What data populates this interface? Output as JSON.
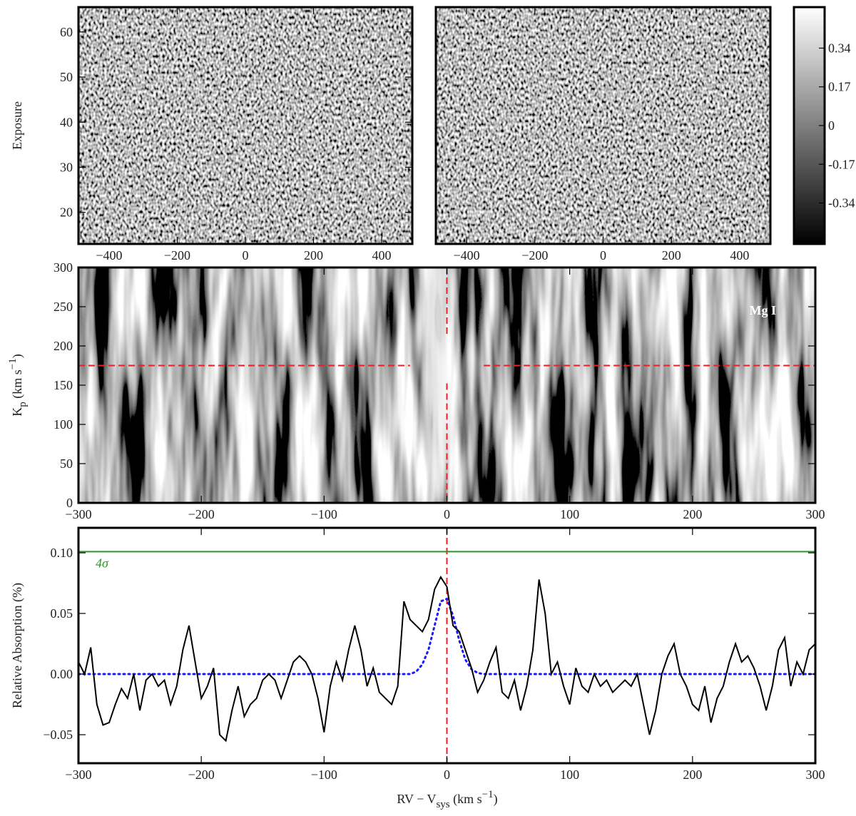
{
  "chart_data": [
    {
      "type": "heatmap",
      "texture": "noise",
      "ylabel": "Exposure",
      "xlim": [
        -490,
        490
      ],
      "xticks": [
        {
          "value": -400,
          "label": "−400"
        },
        {
          "value": -200,
          "label": "−200"
        },
        0,
        200,
        400
      ],
      "ylim": [
        13,
        65.5
      ],
      "yticks": [
        20,
        30,
        40,
        50,
        60
      ]
    },
    {
      "type": "heatmap",
      "texture": "noise",
      "xlim": [
        -490,
        490
      ],
      "xticks": [
        {
          "value": -400,
          "label": "−400"
        },
        {
          "value": -200,
          "label": "−200"
        },
        0,
        200,
        400
      ],
      "colorbar": {
        "lim": [
          -0.52,
          0.52
        ],
        "ticks": [
          0.34,
          0.17,
          0,
          -0.17,
          -0.34
        ]
      }
    },
    {
      "type": "heatmap",
      "texture": "streaks",
      "annotation": "Mg I",
      "ylabel_parts": [
        "K",
        "p",
        " (km s",
        "−1",
        ")"
      ],
      "xlim": [
        -300,
        300
      ],
      "xticks": [
        {
          "value": -300,
          "label": "−300"
        },
        {
          "value": -200,
          "label": "−200"
        },
        {
          "value": -100,
          "label": "−100"
        },
        0,
        100,
        200,
        300
      ],
      "ylim": [
        0,
        300
      ],
      "yticks": [
        0,
        50,
        100,
        150,
        200,
        250,
        300
      ],
      "reference_lines": {
        "kp": 175,
        "rv": 0,
        "color": "#e8202a"
      }
    },
    {
      "type": "line",
      "ylabel": "Relative Absorption (%)",
      "xlabel_parts": [
        "RV − V",
        "sys",
        " (km s",
        "−1",
        ")"
      ],
      "xlim": [
        -300,
        300
      ],
      "xticks": [
        {
          "value": -300,
          "label": "−300"
        },
        {
          "value": -200,
          "label": "−200"
        },
        {
          "value": -100,
          "label": "−100"
        },
        0,
        100,
        200,
        300
      ],
      "ylim": [
        -0.0735,
        0.1206
      ],
      "yticks": [
        {
          "value": -0.05,
          "label": "−0.05"
        },
        {
          "value": 0,
          "label": "0.00"
        },
        {
          "value": 0.05,
          "label": "0.05"
        },
        {
          "value": 0.1,
          "label": "0.10"
        }
      ],
      "reference_rv": 0,
      "reference_color": "#e8202a",
      "threshold": {
        "value": 0.101,
        "label": "4σ",
        "color": "#2a962a"
      },
      "x": [
        -300,
        -295,
        -290,
        -285,
        -280,
        -275,
        -270,
        -265,
        -260,
        -255,
        -250,
        -245,
        -240,
        -235,
        -230,
        -225,
        -220,
        -215,
        -210,
        -205,
        -200,
        -195,
        -190,
        -185,
        -180,
        -175,
        -170,
        -165,
        -160,
        -155,
        -150,
        -145,
        -140,
        -135,
        -130,
        -125,
        -120,
        -115,
        -110,
        -105,
        -100,
        -95,
        -90,
        -85,
        -80,
        -75,
        -70,
        -65,
        -60,
        -55,
        -50,
        -45,
        -40,
        -35,
        -30,
        -25,
        -20,
        -15,
        -10,
        -5,
        0,
        5,
        10,
        15,
        20,
        25,
        30,
        35,
        40,
        45,
        50,
        55,
        60,
        65,
        70,
        75,
        80,
        85,
        90,
        95,
        100,
        105,
        110,
        115,
        120,
        125,
        130,
        135,
        140,
        145,
        150,
        155,
        160,
        165,
        170,
        175,
        180,
        185,
        190,
        195,
        200,
        205,
        210,
        215,
        220,
        225,
        230,
        235,
        240,
        245,
        250,
        255,
        260,
        265,
        270,
        275,
        280,
        285,
        290,
        295,
        300
      ],
      "series": [
        {
          "color": "#000000",
          "style": "solid",
          "values": [
            0.01,
            0.0,
            0.022,
            -0.025,
            -0.042,
            -0.04,
            -0.025,
            -0.012,
            -0.02,
            0.0,
            -0.03,
            -0.005,
            0.0,
            -0.01,
            -0.005,
            -0.025,
            -0.01,
            0.02,
            0.04,
            0.01,
            -0.02,
            -0.01,
            0.005,
            -0.05,
            -0.055,
            -0.03,
            -0.01,
            -0.035,
            -0.025,
            -0.02,
            -0.005,
            0.0,
            -0.005,
            -0.02,
            -0.005,
            0.01,
            0.015,
            0.01,
            0.0,
            -0.02,
            -0.048,
            -0.01,
            0.01,
            -0.005,
            0.02,
            0.04,
            0.02,
            -0.01,
            0.005,
            -0.015,
            -0.02,
            -0.025,
            -0.01,
            0.06,
            0.045,
            0.04,
            0.035,
            0.045,
            0.07,
            0.08,
            0.072,
            0.04,
            0.035,
            0.02,
            0.005,
            -0.015,
            -0.005,
            0.01,
            0.022,
            -0.015,
            -0.02,
            -0.005,
            -0.03,
            -0.01,
            0.02,
            0.078,
            0.05,
            0.0,
            0.01,
            -0.01,
            -0.025,
            0.005,
            -0.01,
            -0.015,
            0.0,
            -0.01,
            -0.005,
            -0.015,
            -0.01,
            -0.005,
            -0.01,
            0.0,
            -0.025,
            -0.05,
            -0.03,
            0.0,
            0.015,
            0.025,
            0.0,
            -0.01,
            -0.025,
            -0.03,
            -0.01,
            -0.04,
            -0.02,
            -0.01,
            0.01,
            0.025,
            0.01,
            0.015,
            0.005,
            -0.01,
            -0.03,
            -0.01,
            0.02,
            0.03,
            -0.01,
            0.01,
            0.0,
            0.02,
            0.025
          ]
        },
        {
          "color": "#1a1aff",
          "style": "dotted",
          "values": [
            0,
            0,
            0,
            0,
            0,
            0,
            0,
            0,
            0,
            0,
            0,
            0,
            0,
            0,
            0,
            0,
            0,
            0,
            0,
            0,
            0,
            0,
            0,
            0,
            0,
            0,
            0,
            0,
            0,
            0,
            0,
            0,
            0,
            0,
            0,
            0,
            0,
            0,
            0,
            0,
            0,
            0,
            0,
            0,
            0,
            0,
            0,
            0,
            0,
            0,
            0,
            0,
            0,
            0,
            0,
            0.002,
            0.008,
            0.02,
            0.04,
            0.06,
            0.062,
            0.048,
            0.028,
            0.012,
            0.004,
            0.001,
            0,
            0,
            0,
            0,
            0,
            0,
            0,
            0,
            0,
            0,
            0,
            0,
            0,
            0,
            0,
            0,
            0,
            0,
            0,
            0,
            0,
            0,
            0,
            0,
            0,
            0,
            0,
            0,
            0,
            0,
            0,
            0,
            0,
            0,
            0,
            0,
            0,
            0,
            0,
            0,
            0,
            0,
            0,
            0,
            0,
            0,
            0,
            0,
            0,
            0,
            0,
            0,
            0,
            0,
            0
          ]
        }
      ]
    }
  ]
}
